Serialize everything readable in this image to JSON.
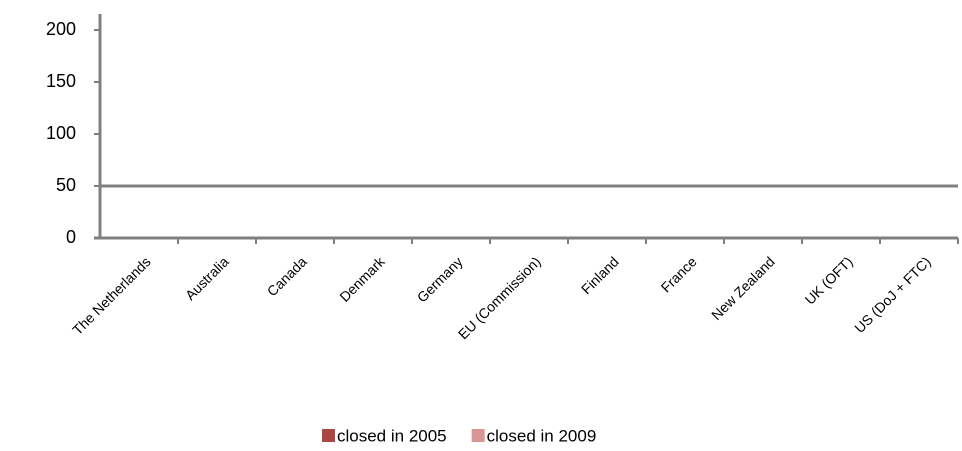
{
  "chart_data": {
    "type": "bar",
    "categories": [
      "The Netherlands",
      "Australia",
      "Canada",
      "Denmark",
      "Germany",
      "EU (Commission)",
      "Finland",
      "France",
      "New Zealand",
      "UK (OFT)",
      "US (DoJ + FTC)"
    ],
    "series": [
      {
        "name": "closed in 2005",
        "color": "#a94745",
        "values": [
          0,
          0,
          0,
          0,
          0,
          0,
          0,
          0,
          0,
          0,
          0
        ]
      },
      {
        "name": "closed in 2009",
        "color": "#d99694",
        "values": [
          0,
          0,
          0,
          0,
          0,
          0,
          0,
          0,
          0,
          0,
          0
        ]
      }
    ],
    "ylim": [
      0,
      200
    ],
    "yticks": [
      0,
      50,
      100,
      150,
      200
    ],
    "hline": 50,
    "grid": false,
    "legend": "bottom"
  }
}
